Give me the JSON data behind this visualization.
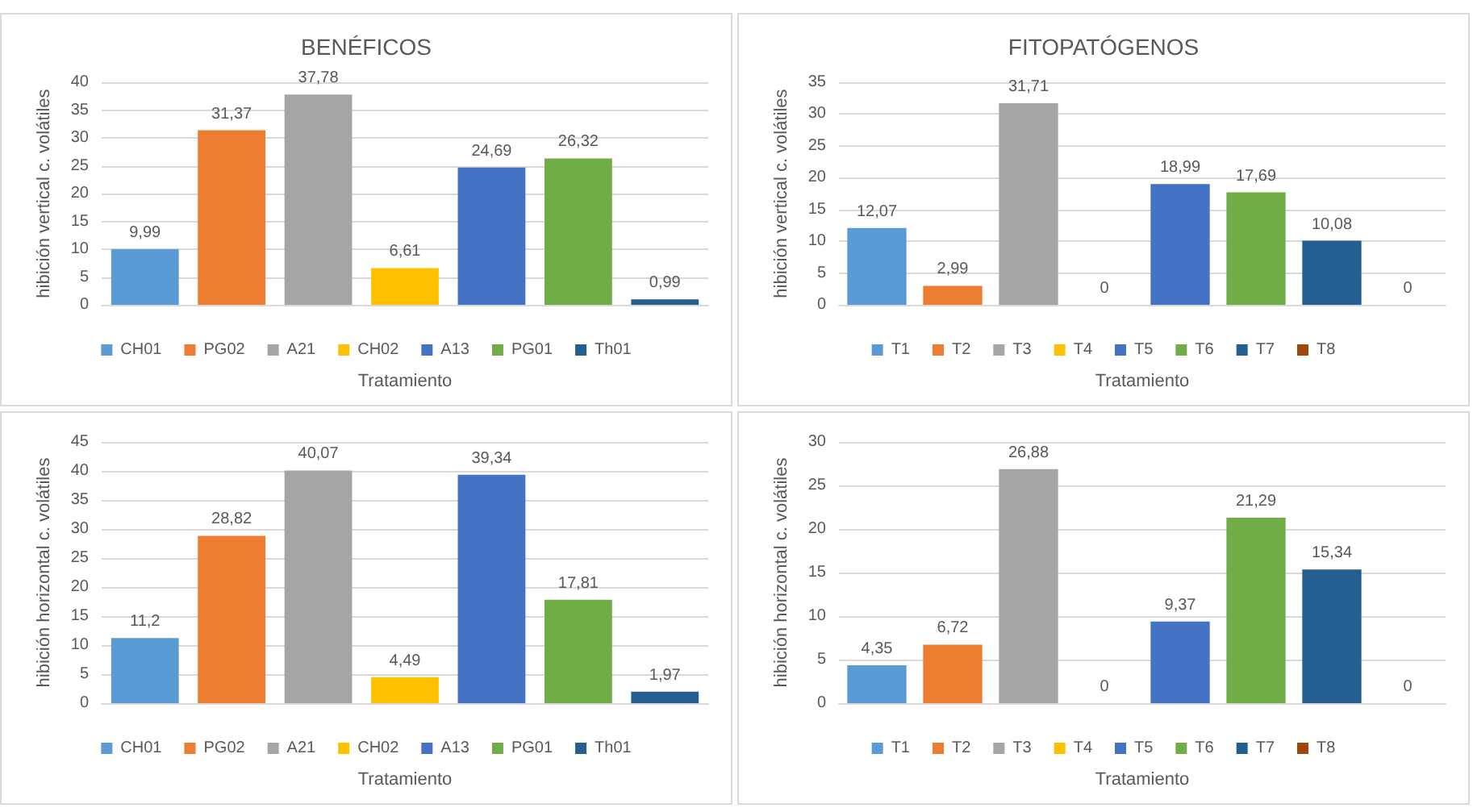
{
  "chart_data": [
    {
      "type": "bar",
      "title": "BENÉFICOS",
      "xlabel": "Tratamiento",
      "ylabel": "hibición vertical c. volátiles",
      "categories": [
        null,
        null,
        null,
        null,
        null,
        null,
        null
      ],
      "ylim": [
        0,
        40
      ],
      "yticks": [
        0,
        5,
        10,
        15,
        20,
        25,
        30,
        35,
        40
      ],
      "grid": "y",
      "legend": "bottom",
      "series": [
        {
          "name": "CH01",
          "color": "#5b9bd5",
          "values": [
            9.99,
            null,
            null,
            null,
            null,
            null,
            null
          ],
          "value_labels": [
            "9,99",
            null,
            null,
            null,
            null,
            null,
            null
          ]
        },
        {
          "name": "PG02",
          "color": "#ed7d31",
          "values": [
            null,
            31.37,
            null,
            null,
            null,
            null,
            null
          ],
          "value_labels": [
            null,
            "31,37",
            null,
            null,
            null,
            null,
            null
          ]
        },
        {
          "name": "A21",
          "color": "#a5a5a5",
          "values": [
            null,
            null,
            37.78,
            null,
            null,
            null,
            null
          ],
          "value_labels": [
            null,
            null,
            "37,78",
            null,
            null,
            null,
            null
          ]
        },
        {
          "name": "CH02",
          "color": "#ffc000",
          "values": [
            null,
            null,
            null,
            6.61,
            null,
            null,
            null
          ],
          "value_labels": [
            null,
            null,
            null,
            "6,61",
            null,
            null,
            null
          ]
        },
        {
          "name": "A13",
          "color": "#4472c4",
          "values": [
            null,
            null,
            null,
            null,
            24.69,
            null,
            null
          ],
          "value_labels": [
            null,
            null,
            null,
            null,
            "24,69",
            null,
            null
          ]
        },
        {
          "name": "PG01",
          "color": "#70ad47",
          "values": [
            null,
            null,
            null,
            null,
            null,
            26.32,
            null
          ],
          "value_labels": [
            null,
            null,
            null,
            null,
            null,
            "26,32",
            null
          ]
        },
        {
          "name": "Th01",
          "color": "#255e91",
          "values": [
            null,
            null,
            null,
            null,
            null,
            null,
            0.99
          ],
          "value_labels": [
            null,
            null,
            null,
            null,
            null,
            null,
            "0,99"
          ]
        }
      ]
    },
    {
      "type": "bar",
      "title": "FITOPATÓGENOS",
      "xlabel": "Tratamiento",
      "ylabel": "hibición vertical c. volátiles",
      "categories": [
        null,
        null,
        null,
        null,
        null,
        null,
        null,
        null
      ],
      "ylim": [
        0,
        35
      ],
      "yticks": [
        0,
        5,
        10,
        15,
        20,
        25,
        30,
        35
      ],
      "grid": "y",
      "legend": "bottom",
      "series": [
        {
          "name": "T1",
          "color": "#5b9bd5",
          "values": [
            12.07,
            null,
            null,
            null,
            null,
            null,
            null,
            null
          ],
          "value_labels": [
            "12,07",
            null,
            null,
            null,
            null,
            null,
            null,
            null
          ]
        },
        {
          "name": "T2",
          "color": "#ed7d31",
          "values": [
            null,
            2.99,
            null,
            null,
            null,
            null,
            null,
            null
          ],
          "value_labels": [
            null,
            "2,99",
            null,
            null,
            null,
            null,
            null,
            null
          ]
        },
        {
          "name": "T3",
          "color": "#a5a5a5",
          "values": [
            null,
            null,
            31.71,
            null,
            null,
            null,
            null,
            null
          ],
          "value_labels": [
            null,
            null,
            "31,71",
            null,
            null,
            null,
            null,
            null
          ]
        },
        {
          "name": "T4",
          "color": "#ffc000",
          "values": [
            null,
            null,
            null,
            0,
            null,
            null,
            null,
            null
          ],
          "value_labels": [
            null,
            null,
            null,
            "0",
            null,
            null,
            null,
            null
          ]
        },
        {
          "name": "T5",
          "color": "#4472c4",
          "values": [
            null,
            null,
            null,
            null,
            18.99,
            null,
            null,
            null
          ],
          "value_labels": [
            null,
            null,
            null,
            null,
            "18,99",
            null,
            null,
            null
          ]
        },
        {
          "name": "T6",
          "color": "#70ad47",
          "values": [
            null,
            null,
            null,
            null,
            null,
            17.69,
            null,
            null
          ],
          "value_labels": [
            null,
            null,
            null,
            null,
            null,
            "17,69",
            null,
            null
          ]
        },
        {
          "name": "T7",
          "color": "#255e91",
          "values": [
            null,
            null,
            null,
            null,
            null,
            null,
            10.08,
            null
          ],
          "value_labels": [
            null,
            null,
            null,
            null,
            null,
            null,
            "10,08",
            null
          ]
        },
        {
          "name": "T8",
          "color": "#9e480e",
          "values": [
            null,
            null,
            null,
            null,
            null,
            null,
            null,
            0
          ],
          "value_labels": [
            null,
            null,
            null,
            null,
            null,
            null,
            null,
            "0"
          ]
        }
      ]
    },
    {
      "type": "bar",
      "xlabel": "Tratamiento",
      "ylabel": "hibición horizontal c. volátiles",
      "categories": [
        null,
        null,
        null,
        null,
        null,
        null,
        null
      ],
      "ylim": [
        0,
        45
      ],
      "yticks": [
        0,
        5,
        10,
        15,
        20,
        25,
        30,
        35,
        40,
        45
      ],
      "grid": "y",
      "legend": "bottom",
      "series": [
        {
          "name": "CH01",
          "color": "#5b9bd5",
          "values": [
            11.2,
            null,
            null,
            null,
            null,
            null,
            null
          ],
          "value_labels": [
            "11,2",
            null,
            null,
            null,
            null,
            null,
            null
          ]
        },
        {
          "name": "PG02",
          "color": "#ed7d31",
          "values": [
            null,
            28.82,
            null,
            null,
            null,
            null,
            null
          ],
          "value_labels": [
            null,
            "28,82",
            null,
            null,
            null,
            null,
            null
          ]
        },
        {
          "name": "A21",
          "color": "#a5a5a5",
          "values": [
            null,
            null,
            40.07,
            null,
            null,
            null,
            null
          ],
          "value_labels": [
            null,
            null,
            "40,07",
            null,
            null,
            null,
            null
          ]
        },
        {
          "name": "CH02",
          "color": "#ffc000",
          "values": [
            null,
            null,
            null,
            4.49,
            null,
            null,
            null
          ],
          "value_labels": [
            null,
            null,
            null,
            "4,49",
            null,
            null,
            null
          ]
        },
        {
          "name": "A13",
          "color": "#4472c4",
          "values": [
            null,
            null,
            null,
            null,
            39.34,
            null,
            null
          ],
          "value_labels": [
            null,
            null,
            null,
            null,
            "39,34",
            null,
            null
          ]
        },
        {
          "name": "PG01",
          "color": "#70ad47",
          "values": [
            null,
            null,
            null,
            null,
            null,
            17.81,
            null
          ],
          "value_labels": [
            null,
            null,
            null,
            null,
            null,
            "17,81",
            null
          ]
        },
        {
          "name": "Th01",
          "color": "#255e91",
          "values": [
            null,
            null,
            null,
            null,
            null,
            null,
            1.97
          ],
          "value_labels": [
            null,
            null,
            null,
            null,
            null,
            null,
            "1,97"
          ]
        }
      ]
    },
    {
      "type": "bar",
      "xlabel": "Tratamiento",
      "ylabel": "hibición horizontal c. volátiles",
      "categories": [
        null,
        null,
        null,
        null,
        null,
        null,
        null,
        null
      ],
      "ylim": [
        0,
        30
      ],
      "yticks": [
        0,
        5,
        10,
        15,
        20,
        25,
        30
      ],
      "grid": "y",
      "legend": "bottom",
      "series": [
        {
          "name": "T1",
          "color": "#5b9bd5",
          "values": [
            4.35,
            null,
            null,
            null,
            null,
            null,
            null,
            null
          ],
          "value_labels": [
            "4,35",
            null,
            null,
            null,
            null,
            null,
            null,
            null
          ]
        },
        {
          "name": "T2",
          "color": "#ed7d31",
          "values": [
            null,
            6.72,
            null,
            null,
            null,
            null,
            null,
            null
          ],
          "value_labels": [
            null,
            "6,72",
            null,
            null,
            null,
            null,
            null,
            null
          ]
        },
        {
          "name": "T3",
          "color": "#a5a5a5",
          "values": [
            null,
            null,
            26.88,
            null,
            null,
            null,
            null,
            null
          ],
          "value_labels": [
            null,
            null,
            "26,88",
            null,
            null,
            null,
            null,
            null
          ]
        },
        {
          "name": "T4",
          "color": "#ffc000",
          "values": [
            null,
            null,
            null,
            0,
            null,
            null,
            null,
            null
          ],
          "value_labels": [
            null,
            null,
            null,
            "0",
            null,
            null,
            null,
            null
          ]
        },
        {
          "name": "T5",
          "color": "#4472c4",
          "values": [
            null,
            null,
            null,
            null,
            9.37,
            null,
            null,
            null
          ],
          "value_labels": [
            null,
            null,
            null,
            null,
            "9,37",
            null,
            null,
            null
          ]
        },
        {
          "name": "T6",
          "color": "#70ad47",
          "values": [
            null,
            null,
            null,
            null,
            null,
            21.29,
            null,
            null
          ],
          "value_labels": [
            null,
            null,
            null,
            null,
            null,
            "21,29",
            null,
            null
          ]
        },
        {
          "name": "T7",
          "color": "#255e91",
          "values": [
            null,
            null,
            null,
            null,
            null,
            null,
            15.34,
            null
          ],
          "value_labels": [
            null,
            null,
            null,
            null,
            null,
            null,
            "15,34",
            null
          ]
        },
        {
          "name": "T8",
          "color": "#9e480e",
          "values": [
            null,
            null,
            null,
            null,
            null,
            null,
            null,
            0
          ],
          "value_labels": [
            null,
            null,
            null,
            null,
            null,
            null,
            null,
            "0"
          ]
        }
      ]
    }
  ]
}
